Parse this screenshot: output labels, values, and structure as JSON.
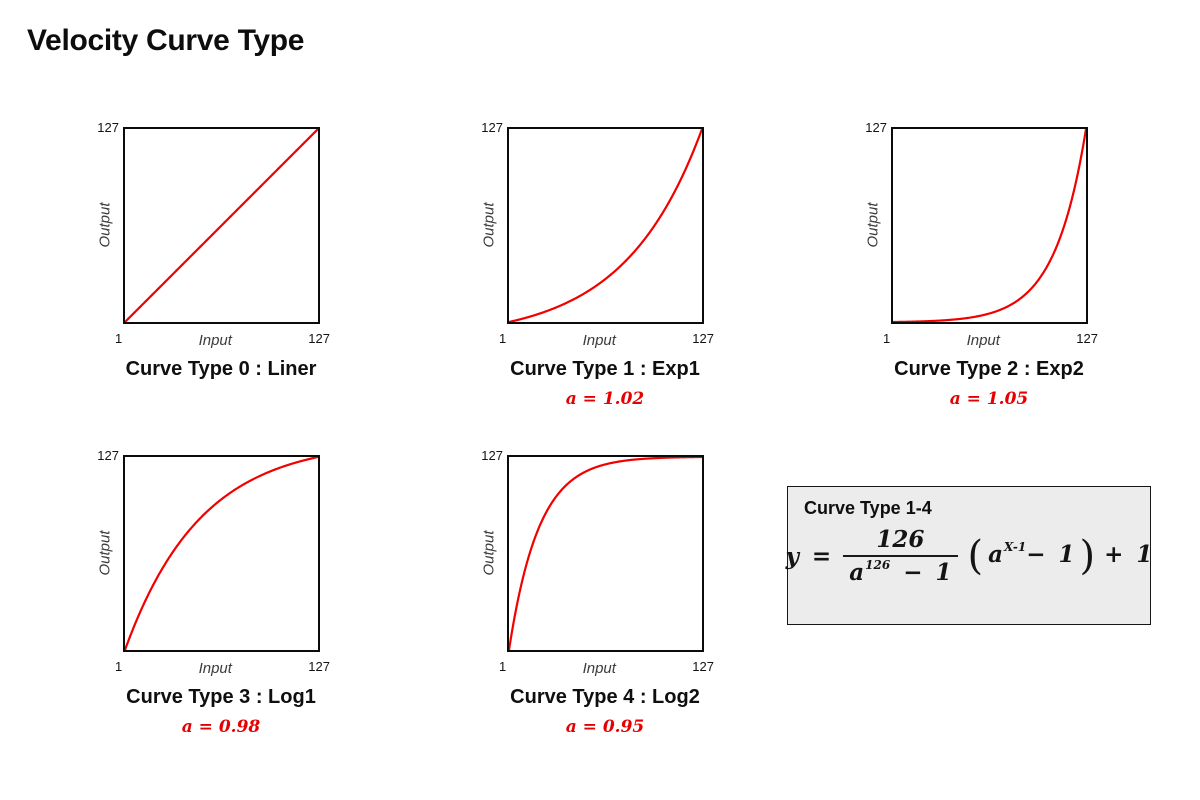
{
  "page": {
    "title": "Velocity Curve Type"
  },
  "colors": {
    "curve_red": "#f20000",
    "accent_red": "#e60000",
    "plot_border": "#0b0b0b",
    "panel_bg": "#ececec",
    "panel_border": "#161616",
    "muted_label": "#3c3c3c"
  },
  "axis": {
    "y_max": "127",
    "x_min": "1",
    "x_max": "127",
    "x_label": "Input",
    "y_label": "Output"
  },
  "chart_data": [
    {
      "type": "line",
      "id": "curve-type-0",
      "title": "Curve Type 0 : Liner",
      "a_label": "",
      "xlabel": "Input",
      "ylabel": "Output",
      "xlim": [
        1,
        127
      ],
      "ylim": [
        1,
        127
      ],
      "grid": false,
      "legend": "none",
      "formula": "y = x",
      "params": {
        "a": null
      },
      "sample_points": [
        [
          1,
          1
        ],
        [
          32,
          32
        ],
        [
          64,
          64
        ],
        [
          96,
          96
        ],
        [
          127,
          127
        ]
      ]
    },
    {
      "type": "line",
      "id": "curve-type-1",
      "title": "Curve Type 1 : Exp1",
      "a_label": "a = 1.02",
      "xlabel": "Input",
      "ylabel": "Output",
      "xlim": [
        1,
        127
      ],
      "ylim": [
        1,
        127
      ],
      "grid": false,
      "legend": "none",
      "formula": "y = 126/(a^126 - 1) * (a^(x-1) - 1) + 1",
      "params": {
        "a": 1.02
      },
      "sample_points": [
        [
          1,
          1
        ],
        [
          32,
          10.6
        ],
        [
          64,
          29.1
        ],
        [
          96,
          64.0
        ],
        [
          127,
          127
        ]
      ]
    },
    {
      "type": "line",
      "id": "curve-type-2",
      "title": "Curve Type 2 : Exp2",
      "a_label": "a = 1.05",
      "xlabel": "Input",
      "ylabel": "Output",
      "xlim": [
        1,
        127
      ],
      "ylim": [
        1,
        127
      ],
      "grid": false,
      "legend": "none",
      "formula": "y = 126/(a^126 - 1) * (a^(x-1) - 1) + 1",
      "params": {
        "a": 1.05
      },
      "sample_points": [
        [
          1,
          1
        ],
        [
          32,
          2.0
        ],
        [
          64,
          6.6
        ],
        [
          96,
          28.5
        ],
        [
          127,
          127
        ]
      ]
    },
    {
      "type": "line",
      "id": "curve-type-3",
      "title": "Curve Type 3 : Log1",
      "a_label": "a = 0.98",
      "xlabel": "Input",
      "ylabel": "Output",
      "xlim": [
        1,
        127
      ],
      "ylim": [
        1,
        127
      ],
      "grid": false,
      "legend": "none",
      "formula": "y = 126/(a^126 - 1) * (a^(x-1) - 1) + 1",
      "params": {
        "a": 0.98
      },
      "sample_points": [
        [
          1,
          1
        ],
        [
          32,
          64.6
        ],
        [
          64,
          99.4
        ],
        [
          96,
          117.7
        ],
        [
          127,
          127
        ]
      ]
    },
    {
      "type": "line",
      "id": "curve-type-4",
      "title": "Curve Type 4 : Log2",
      "a_label": "a = 0.95",
      "xlabel": "Input",
      "ylabel": "Output",
      "xlim": [
        1,
        127
      ],
      "ylim": [
        1,
        127
      ],
      "grid": false,
      "legend": "none",
      "formula": "y = 126/(a^126 - 1) * (a^(x-1) - 1) + 1",
      "params": {
        "a": 0.95
      },
      "sample_points": [
        [
          1,
          1
        ],
        [
          32,
          101.5
        ],
        [
          64,
          122.2
        ],
        [
          96,
          126.2
        ],
        [
          127,
          127
        ]
      ]
    }
  ],
  "formula_panel": {
    "heading": "Curve Type 1-4",
    "lhs": "y =",
    "numerator": "126",
    "den_base": "a",
    "den_exp": "126",
    "den_tail": "− 1",
    "paren_open": "(",
    "paren_base": "a",
    "paren_exp": "X-1",
    "paren_tail": "− 1",
    "paren_close": ")",
    "tail": "+ 1"
  }
}
